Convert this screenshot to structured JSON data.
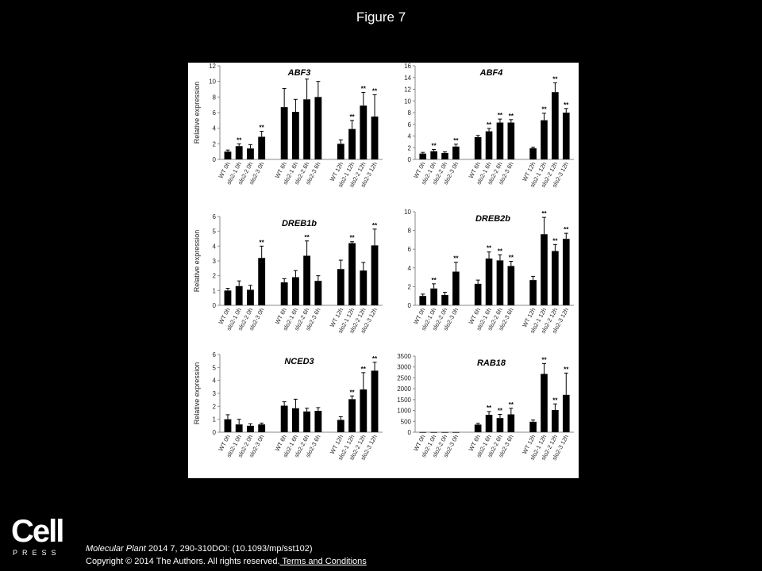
{
  "slide": {
    "title": "Figure 7",
    "logo_word": "Cell",
    "logo_sub": "PRESS",
    "citation_journal": "Molecular Plant",
    "citation_rest": " 2014 7, 290-310DOI: (10.1093/mp/sst102)",
    "copyright_text": "Copyright © 2014 The Authors. All rights reserved.",
    "terms_link": " Terms and Conditions"
  },
  "chart_data": [
    {
      "type": "bar",
      "title": "ABF3",
      "ylabel": "Relative expression",
      "ylim": [
        0,
        12
      ],
      "yticks": [
        0,
        2,
        4,
        6,
        8,
        10,
        12
      ],
      "categories": [
        "WT 0h",
        "slo2-1 0h",
        "slo2-2 0h",
        "slo2-3 0h",
        "WT 6h",
        "slo2-1 6h",
        "slo2-2 6h",
        "slo2-3 6h",
        "WT 12h",
        "slo2-1 12h",
        "slo2-2 12h",
        "slo2-3 12h"
      ],
      "values": [
        1.0,
        1.7,
        1.4,
        2.9,
        6.7,
        6.1,
        7.7,
        8.0,
        2.0,
        3.9,
        6.9,
        5.5
      ],
      "errors": [
        0.2,
        0.3,
        0.5,
        0.7,
        2.4,
        1.6,
        2.6,
        2.0,
        0.5,
        1.1,
        1.7,
        2.8
      ],
      "significance": [
        "",
        "**",
        "",
        "**",
        "",
        "",
        "",
        "",
        "",
        "**",
        "**",
        "**"
      ]
    },
    {
      "type": "bar",
      "title": "ABF4",
      "ylabel": "",
      "ylim": [
        0,
        16
      ],
      "yticks": [
        0,
        2,
        4,
        6,
        8,
        10,
        12,
        14,
        16
      ],
      "categories": [
        "WT 0h",
        "slo2-1 0h",
        "slo2-2 0h",
        "slo2-3 0h",
        "WT 6h",
        "slo2-1 6h",
        "slo2-2 6h",
        "slo2-3 6h",
        "WT 12h",
        "slo2-1 12h",
        "slo2-2 12h",
        "slo2-3 12h"
      ],
      "values": [
        1.0,
        1.4,
        1.1,
        2.2,
        3.8,
        4.8,
        6.3,
        6.3,
        1.9,
        6.7,
        11.5,
        8.0
      ],
      "errors": [
        0.2,
        0.3,
        0.2,
        0.4,
        0.3,
        0.5,
        0.6,
        0.5,
        0.2,
        1.2,
        1.6,
        0.7
      ],
      "significance": [
        "",
        "**",
        "",
        "**",
        "",
        "**",
        "**",
        "**",
        "",
        "**",
        "**",
        "**"
      ]
    },
    {
      "type": "bar",
      "title": "DREB1b",
      "ylabel": "Relative expression",
      "ylim": [
        0,
        6
      ],
      "yticks": [
        0,
        1,
        2,
        3,
        4,
        5,
        6
      ],
      "categories": [
        "WT 0h",
        "slo2-1 0h",
        "slo2-2 0h",
        "slo2-3 0h",
        "WT 6h",
        "slo2-1 6h",
        "slo2-2 6h",
        "slo2-3 6h",
        "WT 12h",
        "slo2-1 12h",
        "slo2-2 12h",
        "slo2-3 12h"
      ],
      "values": [
        1.0,
        1.3,
        1.05,
        3.2,
        1.55,
        1.9,
        3.35,
        1.65,
        2.45,
        4.2,
        2.35,
        4.05
      ],
      "errors": [
        0.15,
        0.35,
        0.3,
        0.8,
        0.25,
        0.45,
        1.0,
        0.35,
        0.6,
        0.1,
        0.55,
        1.1
      ],
      "significance": [
        "",
        "",
        "",
        "**",
        "",
        "",
        "**",
        "",
        "",
        "**",
        "",
        "**"
      ]
    },
    {
      "type": "bar",
      "title": "DREB2b",
      "ylabel": "",
      "ylim": [
        0,
        10
      ],
      "yticks": [
        0,
        2,
        4,
        6,
        8,
        10
      ],
      "categories": [
        "WT 0h",
        "slo2-1 0h",
        "slo2-2 0h",
        "slo2-3 0h",
        "WT 6h",
        "slo2-1 6h",
        "slo2-2 6h",
        "slo2-3 6h",
        "WT 12h",
        "slo2-1 12h",
        "slo2-2 12h",
        "slo2-3 12h"
      ],
      "values": [
        1.0,
        1.8,
        1.1,
        3.6,
        2.3,
        5.0,
        4.8,
        4.2,
        2.7,
        7.6,
        5.8,
        7.1
      ],
      "errors": [
        0.2,
        0.5,
        0.3,
        1.0,
        0.4,
        0.7,
        0.6,
        0.5,
        0.4,
        1.8,
        0.7,
        0.6
      ],
      "significance": [
        "",
        "**",
        "",
        "**",
        "",
        "**",
        "**",
        "**",
        "",
        "**",
        "**",
        "**"
      ]
    },
    {
      "type": "bar",
      "title": "NCED3",
      "ylabel": "Relative expression",
      "ylim": [
        0,
        6
      ],
      "yticks": [
        0,
        1,
        2,
        3,
        4,
        5,
        6
      ],
      "categories": [
        "WT 0h",
        "slo2-1 0h",
        "slo2-2 0h",
        "slo2-3 0h",
        "WT 6h",
        "slo2-1 6h",
        "slo2-2 6h",
        "slo2-3 6h",
        "WT 12h",
        "slo2-1 12h",
        "slo2-2 12h",
        "slo2-3 12h"
      ],
      "values": [
        1.0,
        0.6,
        0.5,
        0.6,
        2.05,
        1.85,
        1.6,
        1.65,
        0.95,
        2.55,
        3.3,
        4.75
      ],
      "errors": [
        0.35,
        0.4,
        0.15,
        0.1,
        0.3,
        0.7,
        0.25,
        0.25,
        0.25,
        0.25,
        1.3,
        0.65
      ],
      "significance": [
        "",
        "",
        "",
        "",
        "",
        "",
        "",
        "",
        "",
        "**",
        "**",
        "**"
      ]
    },
    {
      "type": "bar",
      "title": "RAB18",
      "ylabel": "",
      "ylim": [
        0,
        3500
      ],
      "yticks": [
        0,
        500,
        1000,
        1500,
        2000,
        2500,
        3000,
        3500
      ],
      "categories": [
        "WT 0h",
        "slo2-1 0h",
        "slo2-2 0h",
        "slo2-3 0h",
        "WT 6h",
        "slo2-1 6h",
        "slo2-2 6h",
        "slo2-3 6h",
        "WT 12h",
        "slo2-1 12h",
        "slo2-2 12h",
        "slo2-3 12h"
      ],
      "values": [
        5,
        5,
        5,
        5,
        350,
        800,
        650,
        820,
        480,
        2680,
        1020,
        1720
      ],
      "errors": [
        0,
        0,
        0,
        0,
        60,
        150,
        170,
        280,
        80,
        480,
        280,
        1000
      ],
      "significance": [
        "",
        "",
        "",
        "",
        "",
        "**",
        "**",
        "**",
        "",
        "**",
        "**",
        "**"
      ]
    }
  ]
}
